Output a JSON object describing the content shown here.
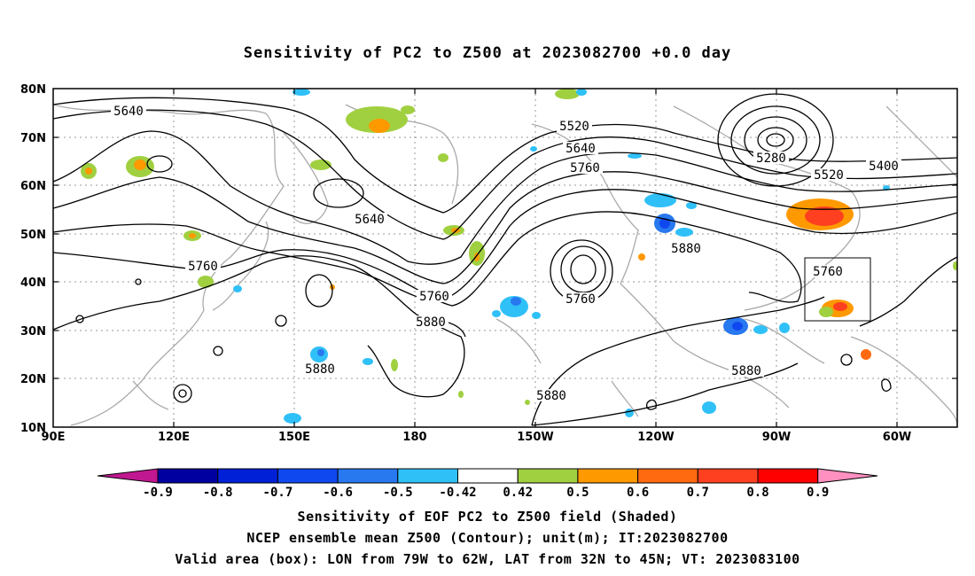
{
  "title": "Sensitivity of PC2 to Z500 at 2023082700 +0.0 day",
  "lat_labels": [
    "80N",
    "70N",
    "60N",
    "50N",
    "40N",
    "30N",
    "20N",
    "10N"
  ],
  "lon_labels": [
    "90E",
    "120E",
    "150E",
    "180",
    "150W",
    "120W",
    "90W",
    "60W"
  ],
  "contour_labels": [
    "5640",
    "5520",
    "5640",
    "5760",
    "5640",
    "5760",
    "5280",
    "5400",
    "5520",
    "5760",
    "5880",
    "5760",
    "5880",
    "5760",
    "5880",
    "5880",
    "5880"
  ],
  "colorbar": {
    "labels": [
      "-0.9",
      "-0.8",
      "-0.7",
      "-0.6",
      "-0.5",
      "-0.42",
      "0.42",
      "0.5",
      "0.6",
      "0.7",
      "0.8",
      "0.9"
    ],
    "colors": [
      "#0000a0",
      "#0020d8",
      "#1048f0",
      "#2878f0",
      "#30c0f8",
      "#ffffff",
      "#a0d040",
      "#ff9900",
      "#ff6a10",
      "#ff4020",
      "#ff0000"
    ],
    "low_end_color": "#c01890",
    "high_end_color": "#ff90c0"
  },
  "footer": {
    "line1": "Sensitivity of EOF PC2 to Z500 field (Shaded)",
    "line2": "NCEP ensemble mean Z500 (Contour); unit(m); IT:2023082700",
    "line3": "Valid area (box): LON from 79W to 62W, LAT from 32N to 45N; VT: 2023083100"
  }
}
